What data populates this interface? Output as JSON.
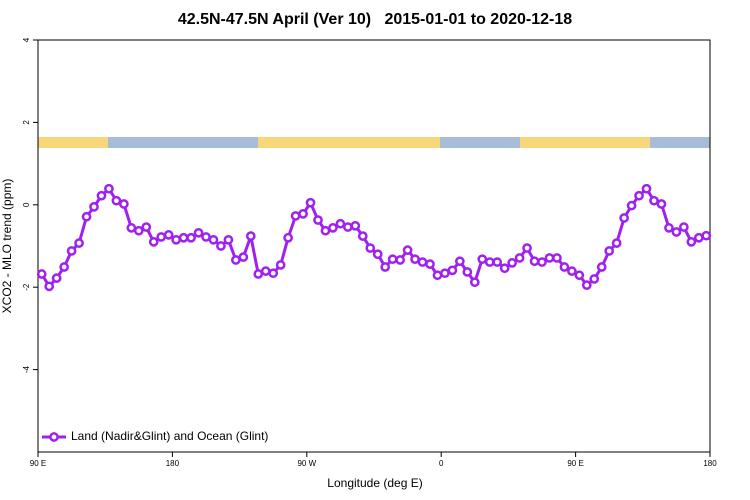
{
  "chart_data": {
    "type": "line",
    "title": "42.5N-47.5N April (Ver 10)   2015-01-01 to 2020-12-18",
    "xlabel": "Longitude (deg E)",
    "ylabel": "XCO2 - MLO trend (ppm)",
    "xlim": [
      90,
      540
    ],
    "ylim": [
      -6,
      4
    ],
    "xticks": [
      {
        "value": 90,
        "label": "90 E"
      },
      180,
      {
        "value": 270,
        "label": "90 W"
      },
      {
        "value": 360,
        "label": "0"
      },
      {
        "value": 450,
        "label": "90 E"
      },
      {
        "value": 540,
        "label": "180"
      }
    ],
    "yticks": [
      -4,
      -2,
      0,
      2,
      4
    ],
    "legend": "bottom-left",
    "series": [
      {
        "name": "Land (Nadir&Glint) and Ocean (Glint)",
        "color": "#a020f0",
        "x": [
          92.5,
          97.5,
          102.5,
          107.5,
          112.5,
          117.5,
          122.5,
          127.5,
          132.5,
          137.5,
          142.5,
          147.5,
          152.5,
          157.5,
          162.5,
          167.5,
          172.5,
          177.5,
          182.5,
          187.5,
          192.5,
          197.5,
          202.5,
          207.5,
          212.5,
          217.5,
          222.5,
          227.5,
          232.5,
          237.5,
          242.5,
          247.5,
          252.5,
          257.5,
          262.5,
          267.5,
          272.5,
          277.5,
          282.5,
          287.5,
          292.5,
          297.5,
          302.5,
          307.5,
          312.5,
          317.5,
          322.5,
          327.5,
          332.5,
          337.5,
          342.5,
          347.5,
          352.5,
          357.5,
          362.5,
          367.5,
          372.5,
          377.5,
          382.5,
          387.5,
          392.5,
          397.5,
          402.5,
          407.5,
          412.5,
          417.5,
          422.5,
          427.5,
          432.5,
          437.5,
          442.5,
          447.5,
          452.5,
          457.5,
          462.5,
          467.5,
          472.5,
          477.5,
          482.5,
          487.5,
          492.5,
          497.5,
          502.5,
          507.5,
          512.5,
          517.5,
          522.5,
          527.5,
          532.5,
          537.5
        ],
        "values": [
          -1.68,
          -1.98,
          -1.78,
          -1.51,
          -1.12,
          -0.93,
          -0.29,
          -0.05,
          0.22,
          0.39,
          0.1,
          0.02,
          -0.56,
          -0.63,
          -0.54,
          -0.9,
          -0.78,
          -0.73,
          -0.85,
          -0.8,
          -0.8,
          -0.68,
          -0.78,
          -0.85,
          -1.0,
          -0.85,
          -1.34,
          -1.27,
          -0.76,
          -1.68,
          -1.61,
          -1.66,
          -1.46,
          -0.8,
          -0.27,
          -0.22,
          0.05,
          -0.37,
          -0.63,
          -0.56,
          -0.46,
          -0.54,
          -0.51,
          -0.76,
          -1.05,
          -1.2,
          -1.51,
          -1.32,
          -1.34,
          -1.1,
          -1.32,
          -1.39,
          -1.44,
          -1.71,
          -1.66,
          -1.59,
          -1.37,
          -1.63,
          -1.88,
          -1.32,
          -1.39,
          -1.39,
          -1.54,
          -1.41,
          -1.29,
          -1.05,
          -1.37,
          -1.39,
          -1.29,
          -1.29,
          -1.51,
          -1.61,
          -1.71,
          -1.95,
          -1.8,
          -1.51,
          -1.12,
          -0.93,
          -0.32,
          -0.02,
          0.22,
          0.39,
          0.1,
          0.02,
          -0.56,
          -0.66,
          -0.54,
          -0.9,
          -0.8,
          -0.75
        ]
      }
    ]
  }
}
